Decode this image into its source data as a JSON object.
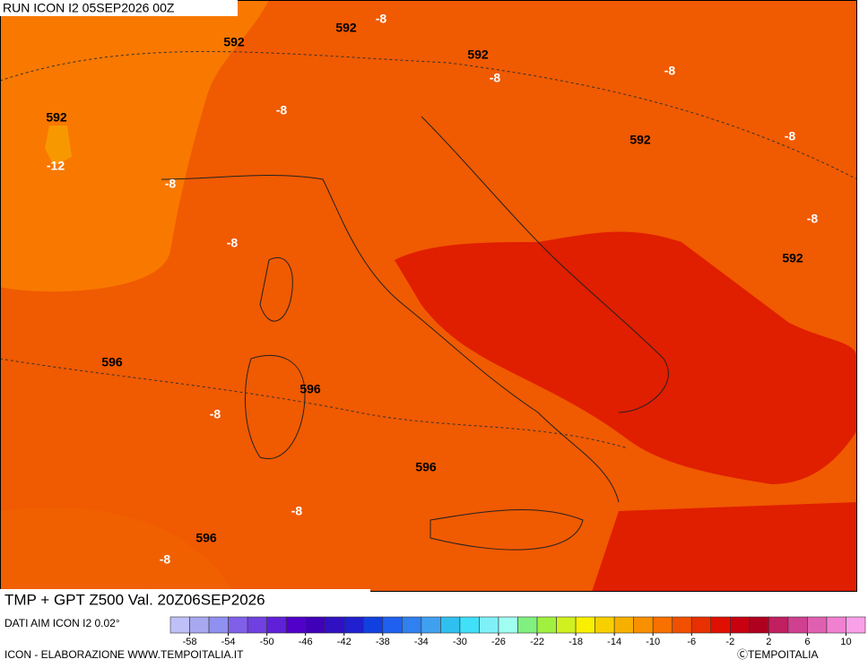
{
  "header": {
    "title": "RUN ICON I2 05SEP2026 00Z"
  },
  "map": {
    "labels": [
      "592",
      "592",
      "-8",
      "592",
      "-8",
      "-8",
      "592",
      "-12",
      "-8",
      "592",
      "-8",
      "-8",
      "-8",
      "-8",
      "592",
      "596",
      "596",
      "-8",
      "596",
      "-8",
      "596",
      "-8"
    ]
  },
  "footer": {
    "title": "TMP + GPT Z500 Val. 20Z06SEP2026",
    "source": "DATI AIM ICON I2 0.02°",
    "credit": "ICON - ELABORAZIONE WWW.TEMPOITALIA.IT",
    "copyright": "ⒸTEMPOITALIA"
  },
  "legend": {
    "range": [
      -60,
      12
    ],
    "ticks": [
      -58,
      -54,
      -50,
      -46,
      -42,
      -38,
      -34,
      -30,
      -26,
      -22,
      -18,
      -14,
      -10,
      -6,
      -2,
      2,
      6,
      10
    ],
    "colors": [
      "#c0c0f8",
      "#a8a8f0",
      "#9090f0",
      "#8060e8",
      "#7040e0",
      "#6020d8",
      "#5000c8",
      "#4000b8",
      "#3010c0",
      "#2020d0",
      "#1040e0",
      "#2060f0",
      "#3080f0",
      "#40a0f0",
      "#30c0f0",
      "#40e0f8",
      "#80f0f8",
      "#a0fff0",
      "#80f080",
      "#a0f040",
      "#d0f020",
      "#f8f000",
      "#f8d000",
      "#f8b000",
      "#f89000",
      "#f87000",
      "#f05000",
      "#e83000",
      "#e01000",
      "#c80010",
      "#b00020",
      "#c02060",
      "#d04090",
      "#e060b0",
      "#f080d0",
      "#f8a0e8"
    ]
  }
}
